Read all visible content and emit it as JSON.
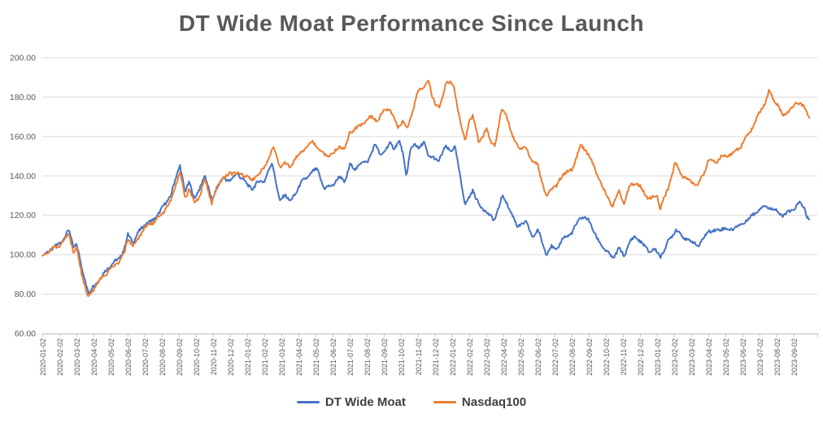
{
  "colors": {
    "background": "#FFFFFF",
    "gridline": "#D9D9D9",
    "axis_line": "#BFBFBF",
    "axis_text": "#595959",
    "title_text": "#595959",
    "legend_text": "#404040",
    "series_blue": "#4472C4",
    "series_orange": "#ED7D31"
  },
  "chart_data": {
    "type": "line",
    "title": "DT Wide Moat Performance Since Launch",
    "legend_position": "bottom",
    "grid": "horizontal",
    "sampling": "anchors are [month_index, indexed_value] points estimated from the plot; month_index 0 = 2020-01-02, one unit per month tick; both series indexed to ~100 at launch; underlying curve is daily and noisy",
    "y_axis": {
      "min": 60,
      "max": 200,
      "step": 20,
      "tick_labels": [
        "200.00",
        "180.00",
        "160.00",
        "140.00",
        "120.00",
        "100.00",
        "80.00",
        "60.00"
      ]
    },
    "x_axis": {
      "labels": [
        "2020-01-02",
        "2020-02-02",
        "2020-03-02",
        "2020-04-02",
        "2020-05-02",
        "2020-06-02",
        "2020-07-02",
        "2020-08-02",
        "2020-09-02",
        "2020-10-02",
        "2020-11-02",
        "2020-12-02",
        "2021-01-02",
        "2021-02-02",
        "2021-03-02",
        "2021-04-02",
        "2021-05-02",
        "2021-06-02",
        "2021-07-02",
        "2021-08-02",
        "2021-09-02",
        "2021-10-02",
        "2021-11-02",
        "2021-12-02",
        "2022-01-02",
        "2022-02-02",
        "2022-03-02",
        "2022-04-02",
        "2022-05-02",
        "2022-06-02",
        "2022-07-02",
        "2022-08-02",
        "2022-09-02",
        "2022-10-02",
        "2022-11-02",
        "2022-12-02",
        "2023-01-02",
        "2023-02-02",
        "2023-03-02",
        "2023-04-02",
        "2023-05-02",
        "2023-06-02",
        "2023-07-02",
        "2023-08-02",
        "2023-09-02"
      ]
    },
    "series": [
      {
        "name": "DT Wide Moat",
        "color": "#4472C4",
        "anchors": [
          [
            0,
            99.5
          ],
          [
            0.7,
            104
          ],
          [
            1,
            105.5
          ],
          [
            1.55,
            112.5
          ],
          [
            1.8,
            104
          ],
          [
            2,
            105.5
          ],
          [
            2.3,
            93
          ],
          [
            2.7,
            80.5
          ],
          [
            3,
            84
          ],
          [
            3.5,
            89.5
          ],
          [
            4,
            95
          ],
          [
            4.5,
            98
          ],
          [
            4.8,
            103.5
          ],
          [
            5,
            110
          ],
          [
            5.3,
            106.5
          ],
          [
            5.6,
            111
          ],
          [
            6,
            115.5
          ],
          [
            6.5,
            117.5
          ],
          [
            7,
            123.5
          ],
          [
            7.5,
            130
          ],
          [
            8.05,
            145.8
          ],
          [
            8.35,
            131.5
          ],
          [
            8.6,
            137
          ],
          [
            8.9,
            128.5
          ],
          [
            9.2,
            133
          ],
          [
            9.5,
            141
          ],
          [
            9.9,
            127.5
          ],
          [
            10.2,
            134
          ],
          [
            10.6,
            139
          ],
          [
            11,
            137.5
          ],
          [
            11.4,
            141.5
          ],
          [
            11.7,
            138.5
          ],
          [
            12,
            135.5
          ],
          [
            12.3,
            133.5
          ],
          [
            12.7,
            137.5
          ],
          [
            13,
            137.5
          ],
          [
            13.45,
            147
          ],
          [
            13.9,
            126.5
          ],
          [
            14.2,
            131
          ],
          [
            14.5,
            127
          ],
          [
            14.8,
            130.5
          ],
          [
            15.1,
            136.5
          ],
          [
            15.5,
            139
          ],
          [
            15.8,
            142.5
          ],
          [
            16.1,
            143
          ],
          [
            16.5,
            133.5
          ],
          [
            17,
            135.5
          ],
          [
            17.4,
            139.5
          ],
          [
            17.7,
            137
          ],
          [
            18,
            145.5
          ],
          [
            18.3,
            143.5
          ],
          [
            18.7,
            147
          ],
          [
            19,
            147
          ],
          [
            19.5,
            156
          ],
          [
            19.8,
            150.5
          ],
          [
            20.1,
            153
          ],
          [
            20.35,
            157
          ],
          [
            20.6,
            154
          ],
          [
            20.9,
            157.3
          ],
          [
            21.1,
            152
          ],
          [
            21.3,
            139.5
          ],
          [
            21.55,
            153
          ],
          [
            21.8,
            157
          ],
          [
            22.05,
            153.5
          ],
          [
            22.35,
            157.3
          ],
          [
            22.6,
            150
          ],
          [
            22.9,
            149
          ],
          [
            23.15,
            147.5
          ],
          [
            23.6,
            154.5
          ],
          [
            23.9,
            153
          ],
          [
            24.15,
            154.5
          ],
          [
            24.45,
            140
          ],
          [
            24.75,
            125.5
          ],
          [
            25,
            129
          ],
          [
            25.2,
            133
          ],
          [
            25.6,
            124.5
          ],
          [
            26,
            122
          ],
          [
            26.45,
            117
          ],
          [
            26.9,
            129.5
          ],
          [
            27.1,
            127.5
          ],
          [
            27.5,
            120.5
          ],
          [
            27.8,
            114
          ],
          [
            28,
            115.5
          ],
          [
            28.3,
            116.5
          ],
          [
            28.7,
            109
          ],
          [
            29,
            112.5
          ],
          [
            29.5,
            100.5
          ],
          [
            29.8,
            104
          ],
          [
            30.1,
            102.5
          ],
          [
            30.5,
            108.5
          ],
          [
            31,
            111
          ],
          [
            31.5,
            119.3
          ],
          [
            32,
            117.5
          ],
          [
            32.5,
            107.5
          ],
          [
            33,
            102
          ],
          [
            33.4,
            98
          ],
          [
            33.75,
            103.5
          ],
          [
            34.05,
            99
          ],
          [
            34.4,
            107
          ],
          [
            34.7,
            109
          ],
          [
            35,
            107
          ],
          [
            35.5,
            101.5
          ],
          [
            35.8,
            103
          ],
          [
            36,
            101
          ],
          [
            36.2,
            99
          ],
          [
            36.6,
            106
          ],
          [
            37.1,
            113
          ],
          [
            37.5,
            109
          ],
          [
            38.1,
            106
          ],
          [
            38.45,
            104.7
          ],
          [
            38.8,
            109.5
          ],
          [
            39,
            112.3
          ],
          [
            39.4,
            112
          ],
          [
            39.8,
            113.5
          ],
          [
            40.2,
            112.5
          ],
          [
            40.6,
            114
          ],
          [
            41,
            115.7
          ],
          [
            41.5,
            119.5
          ],
          [
            42,
            123.3
          ],
          [
            42.3,
            125
          ],
          [
            42.6,
            123.5
          ],
          [
            43,
            122.5
          ],
          [
            43.35,
            119.3
          ],
          [
            43.7,
            122
          ],
          [
            44,
            123
          ],
          [
            44.35,
            126.5
          ],
          [
            44.6,
            124.5
          ],
          [
            44.75,
            118.5
          ],
          [
            44.93,
            117.5
          ]
        ]
      },
      {
        "name": "Nasdaq100",
        "color": "#ED7D31",
        "anchors": [
          [
            0,
            99.5
          ],
          [
            0.7,
            103.5
          ],
          [
            1,
            104.5
          ],
          [
            1.55,
            110.5
          ],
          [
            1.8,
            101.5
          ],
          [
            2,
            103
          ],
          [
            2.3,
            90.5
          ],
          [
            2.65,
            78.3
          ],
          [
            3,
            82.5
          ],
          [
            3.5,
            88.5
          ],
          [
            4,
            92.5
          ],
          [
            4.5,
            96.5
          ],
          [
            4.8,
            101
          ],
          [
            5,
            108
          ],
          [
            5.3,
            104.5
          ],
          [
            5.6,
            108.5
          ],
          [
            6,
            113.5
          ],
          [
            6.5,
            116.5
          ],
          [
            7,
            121
          ],
          [
            7.5,
            127
          ],
          [
            8.05,
            142
          ],
          [
            8.35,
            128.5
          ],
          [
            8.6,
            133.5
          ],
          [
            8.9,
            125.5
          ],
          [
            9.2,
            130
          ],
          [
            9.5,
            138.5
          ],
          [
            9.9,
            126.5
          ],
          [
            10.2,
            133.5
          ],
          [
            10.6,
            139.5
          ],
          [
            11,
            141
          ],
          [
            11.4,
            142
          ],
          [
            11.7,
            140
          ],
          [
            12,
            140
          ],
          [
            12.3,
            137.5
          ],
          [
            12.7,
            142
          ],
          [
            13,
            144
          ],
          [
            13.5,
            155
          ],
          [
            13.9,
            144.5
          ],
          [
            14.2,
            146.5
          ],
          [
            14.5,
            144
          ],
          [
            14.8,
            149
          ],
          [
            15.1,
            151
          ],
          [
            15.5,
            155.5
          ],
          [
            15.8,
            157
          ],
          [
            16.1,
            155
          ],
          [
            16.5,
            150.5
          ],
          [
            17,
            151
          ],
          [
            17.4,
            155
          ],
          [
            17.7,
            154
          ],
          [
            18,
            162
          ],
          [
            18.4,
            164.5
          ],
          [
            18.7,
            166
          ],
          [
            19,
            168.8
          ],
          [
            19.3,
            170
          ],
          [
            19.6,
            168
          ],
          [
            20,
            172.9
          ],
          [
            20.3,
            174.5
          ],
          [
            20.8,
            164.5
          ],
          [
            21.1,
            167.5
          ],
          [
            21.35,
            164
          ],
          [
            21.7,
            174
          ],
          [
            22,
            183
          ],
          [
            22.3,
            185
          ],
          [
            22.6,
            188.5
          ],
          [
            22.8,
            181
          ],
          [
            23,
            177.1
          ],
          [
            23.25,
            174.5
          ],
          [
            23.65,
            188
          ],
          [
            23.9,
            187
          ],
          [
            24.1,
            184.5
          ],
          [
            24.45,
            168
          ],
          [
            24.75,
            157.5
          ],
          [
            25,
            168.5
          ],
          [
            25.2,
            170.5
          ],
          [
            25.55,
            156.5
          ],
          [
            26,
            163.9
          ],
          [
            26.2,
            158
          ],
          [
            26.5,
            156
          ],
          [
            26.9,
            174
          ],
          [
            27.1,
            172.5
          ],
          [
            27.5,
            160
          ],
          [
            27.8,
            156
          ],
          [
            28,
            153
          ],
          [
            28.3,
            155
          ],
          [
            28.7,
            147
          ],
          [
            29,
            145.5
          ],
          [
            29.5,
            128.8
          ],
          [
            29.8,
            134.5
          ],
          [
            30.1,
            134.5
          ],
          [
            30.5,
            141.5
          ],
          [
            31,
            143
          ],
          [
            31.5,
            155.5
          ],
          [
            32,
            151
          ],
          [
            32.5,
            140
          ],
          [
            33,
            130.5
          ],
          [
            33.4,
            124.5
          ],
          [
            33.75,
            132.5
          ],
          [
            34.05,
            126.5
          ],
          [
            34.4,
            135
          ],
          [
            34.7,
            136.5
          ],
          [
            35,
            134.5
          ],
          [
            35.5,
            128
          ],
          [
            35.8,
            129.5
          ],
          [
            36,
            130
          ],
          [
            36.15,
            123
          ],
          [
            36.6,
            133
          ],
          [
            37.05,
            146.5
          ],
          [
            37.5,
            139.5
          ],
          [
            38,
            137.1
          ],
          [
            38.35,
            134.5
          ],
          [
            38.8,
            143
          ],
          [
            39,
            148.1
          ],
          [
            39.4,
            147
          ],
          [
            39.8,
            150
          ],
          [
            40.2,
            150.5
          ],
          [
            40.6,
            152.5
          ],
          [
            41,
            156.4
          ],
          [
            41.5,
            163.5
          ],
          [
            42,
            172.2
          ],
          [
            42.3,
            177
          ],
          [
            42.55,
            183.3
          ],
          [
            42.8,
            179
          ],
          [
            43,
            177
          ],
          [
            43.35,
            170.5
          ],
          [
            43.7,
            173
          ],
          [
            44,
            175.5
          ],
          [
            44.15,
            177.5
          ],
          [
            44.45,
            176.5
          ],
          [
            44.65,
            174
          ],
          [
            44.93,
            169
          ]
        ]
      }
    ]
  }
}
